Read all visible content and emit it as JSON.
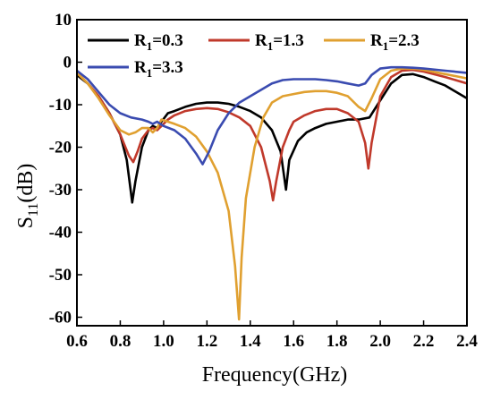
{
  "chart_data": {
    "type": "line",
    "title": "",
    "xlabel": "Frequency(GHz)",
    "ylabel": {
      "main": "S",
      "sub": "11",
      "rest": "(dB)"
    },
    "xlim": [
      0.6,
      2.4
    ],
    "ylim": [
      -62,
      10
    ],
    "xticks": [
      "0.6",
      "0.8",
      "1.0",
      "1.2",
      "1.4",
      "1.6",
      "1.8",
      "2.0",
      "2.2",
      "2.4"
    ],
    "yticks": [
      "10",
      "0",
      "-10",
      "-20",
      "-30",
      "-40",
      "-50",
      "-60"
    ],
    "grid": false,
    "legend_placement": "top",
    "series": [
      {
        "name": "R1=0.3",
        "legend_main": "R",
        "legend_sub": "1",
        "legend_rest": "=0.3",
        "color": "#000000",
        "points": [
          [
            0.6,
            -3
          ],
          [
            0.65,
            -5
          ],
          [
            0.7,
            -8
          ],
          [
            0.75,
            -12
          ],
          [
            0.8,
            -17
          ],
          [
            0.83,
            -23
          ],
          [
            0.85,
            -31
          ],
          [
            0.855,
            -33
          ],
          [
            0.87,
            -28
          ],
          [
            0.9,
            -20
          ],
          [
            0.93,
            -16
          ],
          [
            0.95,
            -15
          ],
          [
            0.97,
            -15.5
          ],
          [
            0.99,
            -14
          ],
          [
            1.02,
            -12
          ],
          [
            1.05,
            -11.5
          ],
          [
            1.1,
            -10.5
          ],
          [
            1.15,
            -9.8
          ],
          [
            1.2,
            -9.5
          ],
          [
            1.25,
            -9.5
          ],
          [
            1.3,
            -9.8
          ],
          [
            1.35,
            -10.5
          ],
          [
            1.4,
            -11.5
          ],
          [
            1.45,
            -13
          ],
          [
            1.5,
            -16
          ],
          [
            1.54,
            -21
          ],
          [
            1.565,
            -30
          ],
          [
            1.58,
            -23
          ],
          [
            1.62,
            -18.5
          ],
          [
            1.66,
            -16.5
          ],
          [
            1.7,
            -15.5
          ],
          [
            1.75,
            -14.5
          ],
          [
            1.8,
            -14
          ],
          [
            1.85,
            -13.5
          ],
          [
            1.9,
            -13.5
          ],
          [
            1.95,
            -13
          ],
          [
            2.0,
            -9
          ],
          [
            2.05,
            -5
          ],
          [
            2.1,
            -3
          ],
          [
            2.15,
            -2.8
          ],
          [
            2.2,
            -3.5
          ],
          [
            2.25,
            -4.5
          ],
          [
            2.3,
            -5.5
          ],
          [
            2.35,
            -7
          ],
          [
            2.4,
            -8.5
          ]
        ]
      },
      {
        "name": "R1=1.3",
        "legend_main": "R",
        "legend_sub": "1",
        "legend_rest": "=1.3",
        "color": "#c0392b",
        "points": [
          [
            0.6,
            -2.5
          ],
          [
            0.65,
            -5
          ],
          [
            0.7,
            -8
          ],
          [
            0.75,
            -12
          ],
          [
            0.8,
            -17
          ],
          [
            0.84,
            -22
          ],
          [
            0.86,
            -23.5
          ],
          [
            0.88,
            -21
          ],
          [
            0.9,
            -18
          ],
          [
            0.93,
            -16
          ],
          [
            0.95,
            -15.5
          ],
          [
            0.97,
            -16
          ],
          [
            0.99,
            -15
          ],
          [
            1.02,
            -13.5
          ],
          [
            1.05,
            -12.5
          ],
          [
            1.1,
            -11.5
          ],
          [
            1.15,
            -11
          ],
          [
            1.2,
            -10.8
          ],
          [
            1.25,
            -11
          ],
          [
            1.3,
            -11.8
          ],
          [
            1.35,
            -13
          ],
          [
            1.4,
            -15
          ],
          [
            1.45,
            -20
          ],
          [
            1.49,
            -28
          ],
          [
            1.505,
            -32.5
          ],
          [
            1.52,
            -28
          ],
          [
            1.55,
            -20
          ],
          [
            1.58,
            -16
          ],
          [
            1.6,
            -14
          ],
          [
            1.65,
            -12.5
          ],
          [
            1.7,
            -11.5
          ],
          [
            1.75,
            -11
          ],
          [
            1.8,
            -11
          ],
          [
            1.85,
            -12
          ],
          [
            1.9,
            -14
          ],
          [
            1.93,
            -19
          ],
          [
            1.945,
            -25
          ],
          [
            1.96,
            -19
          ],
          [
            2.0,
            -8
          ],
          [
            2.05,
            -3.5
          ],
          [
            2.1,
            -2
          ],
          [
            2.15,
            -1.8
          ],
          [
            2.2,
            -2.2
          ],
          [
            2.3,
            -3.5
          ],
          [
            2.4,
            -5
          ]
        ]
      },
      {
        "name": "R1=2.3",
        "legend_main": "R",
        "legend_sub": "1",
        "legend_rest": "=2.3",
        "color": "#e0a030",
        "points": [
          [
            0.6,
            -2.5
          ],
          [
            0.65,
            -5
          ],
          [
            0.7,
            -8.5
          ],
          [
            0.75,
            -12.5
          ],
          [
            0.8,
            -16
          ],
          [
            0.84,
            -17
          ],
          [
            0.87,
            -16.5
          ],
          [
            0.9,
            -15.5
          ],
          [
            0.93,
            -15.5
          ],
          [
            0.95,
            -16.5
          ],
          [
            0.97,
            -15.5
          ],
          [
            0.99,
            -13.5
          ],
          [
            1.02,
            -14
          ],
          [
            1.05,
            -14.5
          ],
          [
            1.1,
            -15.5
          ],
          [
            1.15,
            -17.5
          ],
          [
            1.2,
            -21
          ],
          [
            1.25,
            -26
          ],
          [
            1.3,
            -35
          ],
          [
            1.33,
            -48
          ],
          [
            1.348,
            -60.5
          ],
          [
            1.36,
            -46
          ],
          [
            1.38,
            -32
          ],
          [
            1.42,
            -20
          ],
          [
            1.46,
            -13
          ],
          [
            1.5,
            -9.5
          ],
          [
            1.55,
            -8
          ],
          [
            1.6,
            -7.5
          ],
          [
            1.65,
            -7
          ],
          [
            1.7,
            -6.8
          ],
          [
            1.75,
            -6.8
          ],
          [
            1.8,
            -7.2
          ],
          [
            1.85,
            -8
          ],
          [
            1.9,
            -10.5
          ],
          [
            1.93,
            -11.5
          ],
          [
            1.96,
            -8.5
          ],
          [
            2.0,
            -4
          ],
          [
            2.05,
            -2
          ],
          [
            2.1,
            -1.5
          ],
          [
            2.15,
            -1.5
          ],
          [
            2.2,
            -1.8
          ],
          [
            2.3,
            -2.8
          ],
          [
            2.4,
            -3.8
          ]
        ]
      },
      {
        "name": "R1=3.3",
        "legend_main": "R",
        "legend_sub": "1",
        "legend_rest": "=3.3",
        "color": "#3a4bb0",
        "points": [
          [
            0.6,
            -2
          ],
          [
            0.65,
            -4
          ],
          [
            0.7,
            -7
          ],
          [
            0.75,
            -10
          ],
          [
            0.8,
            -12
          ],
          [
            0.85,
            -13
          ],
          [
            0.9,
            -13.5
          ],
          [
            0.93,
            -14
          ],
          [
            0.95,
            -14.5
          ],
          [
            0.97,
            -14
          ],
          [
            1.0,
            -15
          ],
          [
            1.05,
            -16
          ],
          [
            1.1,
            -18
          ],
          [
            1.15,
            -21.5
          ],
          [
            1.18,
            -24
          ],
          [
            1.21,
            -21
          ],
          [
            1.25,
            -16
          ],
          [
            1.3,
            -12
          ],
          [
            1.35,
            -9.5
          ],
          [
            1.4,
            -8
          ],
          [
            1.45,
            -6.5
          ],
          [
            1.5,
            -5
          ],
          [
            1.55,
            -4.2
          ],
          [
            1.6,
            -4
          ],
          [
            1.65,
            -4
          ],
          [
            1.7,
            -4
          ],
          [
            1.75,
            -4.2
          ],
          [
            1.8,
            -4.5
          ],
          [
            1.85,
            -5
          ],
          [
            1.9,
            -5.5
          ],
          [
            1.93,
            -5
          ],
          [
            1.96,
            -3
          ],
          [
            2.0,
            -1.5
          ],
          [
            2.05,
            -1.2
          ],
          [
            2.1,
            -1.2
          ],
          [
            2.15,
            -1.3
          ],
          [
            2.2,
            -1.5
          ],
          [
            2.3,
            -2
          ],
          [
            2.4,
            -2.5
          ]
        ]
      }
    ]
  }
}
